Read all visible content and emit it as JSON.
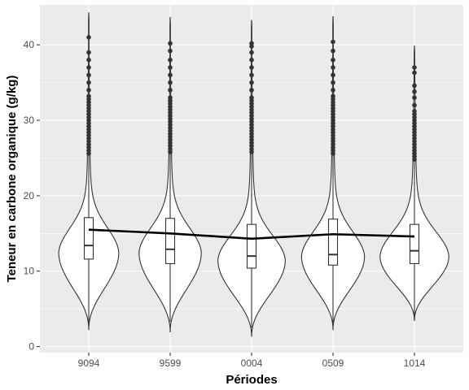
{
  "chart_data": {
    "type": "violin",
    "xlabel": "Périodes",
    "ylabel": "Teneur en carbone organique (g/kg)",
    "categories": [
      "9094",
      "9599",
      "0004",
      "0509",
      "1014"
    ],
    "ylim": [
      -0.8,
      45.3
    ],
    "yticks": [
      0,
      10,
      20,
      30,
      40
    ],
    "grid": true,
    "colors": {
      "panel": "#ebebeb",
      "grid": "#ffffff",
      "violin_fill": "#ffffff",
      "outline": "#333333",
      "trend": "#000000"
    },
    "violins": [
      {
        "category": "9094",
        "min": 2.2,
        "max": 44.3,
        "mode": 12.5,
        "half_width_at_mode": 0.82
      },
      {
        "category": "9599",
        "min": 1.9,
        "max": 43.7,
        "mode": 12.5,
        "half_width_at_mode": 0.85
      },
      {
        "category": "0004",
        "min": 1.3,
        "max": 43.3,
        "mode": 11.5,
        "half_width_at_mode": 0.92
      },
      {
        "category": "0509",
        "min": 2.2,
        "max": 43.8,
        "mode": 12.0,
        "half_width_at_mode": 0.86
      },
      {
        "category": "1014",
        "min": 3.4,
        "max": 39.9,
        "mode": 12.0,
        "half_width_at_mode": 0.94
      }
    ],
    "boxes": [
      {
        "category": "9094",
        "lower_whisker": 3.3,
        "q1": 11.6,
        "median": 13.4,
        "q3": 17.1,
        "upper_whisker": 25.4
      },
      {
        "category": "9599",
        "lower_whisker": 3.3,
        "q1": 11.0,
        "median": 12.9,
        "q3": 17.0,
        "upper_whisker": 25.6
      },
      {
        "category": "0004",
        "lower_whisker": 2.5,
        "q1": 10.4,
        "median": 12.0,
        "q3": 16.2,
        "upper_whisker": 25.6
      },
      {
        "category": "0509",
        "lower_whisker": 3.2,
        "q1": 10.8,
        "median": 12.2,
        "q3": 16.9,
        "upper_whisker": 25.4
      },
      {
        "category": "1014",
        "lower_whisker": 3.5,
        "q1": 11.0,
        "median": 12.7,
        "q3": 16.2,
        "upper_whisker": 24.7
      }
    ],
    "outliers": [
      {
        "category": "9094",
        "values": [
          25.6,
          26,
          26.4,
          26.8,
          27.2,
          27.6,
          28,
          28.4,
          28.8,
          29.2,
          29.6,
          30,
          30.4,
          30.8,
          31.2,
          31.6,
          32,
          32.4,
          32.8,
          33.2,
          34,
          35,
          36,
          37,
          38,
          39,
          41
        ]
      },
      {
        "category": "9599",
        "values": [
          25.8,
          26.2,
          26.6,
          27,
          27.4,
          27.8,
          28.2,
          28.6,
          29,
          29.4,
          29.8,
          30.2,
          30.6,
          31,
          31.4,
          31.8,
          32.2,
          32.6,
          33,
          34,
          35,
          36,
          37,
          38,
          39.2,
          40.2
        ]
      },
      {
        "category": "0004",
        "values": [
          25.8,
          26.2,
          26.6,
          27,
          27.4,
          27.8,
          28.2,
          28.6,
          29,
          29.4,
          29.8,
          30.2,
          30.6,
          31,
          31.4,
          31.8,
          32.2,
          32.6,
          33,
          34,
          35,
          36,
          37,
          38,
          39,
          39.8,
          40.2
        ]
      },
      {
        "category": "0509",
        "values": [
          25.6,
          26,
          26.4,
          26.8,
          27.2,
          27.6,
          28,
          28.4,
          28.8,
          29.2,
          29.6,
          30,
          30.4,
          30.8,
          31.2,
          31.6,
          32,
          32.4,
          32.8,
          33.2,
          34,
          35,
          36,
          37,
          38,
          39.2,
          40.4
        ]
      },
      {
        "category": "1014",
        "values": [
          24.8,
          25.2,
          25.6,
          26,
          26.4,
          26.8,
          27.2,
          27.6,
          28,
          28.4,
          28.8,
          29.2,
          29.6,
          30,
          30.4,
          30.8,
          31.2,
          32,
          33,
          33.8,
          34.6,
          36.3,
          37
        ]
      }
    ],
    "trend_line": {
      "values": [
        15.5,
        15.0,
        14.3,
        14.9,
        14.6
      ]
    }
  }
}
